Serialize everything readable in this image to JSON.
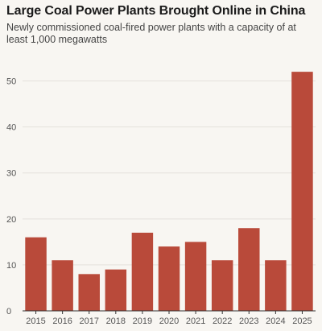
{
  "chart_data": {
    "type": "bar",
    "title": "Large Coal Power Plants Brought Online in China",
    "subtitle": "Newly commissioned coal-fired power plants with a capacity of at least 1,000 megawatts",
    "xlabel": "",
    "ylabel": "",
    "categories": [
      "2015",
      "2016",
      "2017",
      "2018",
      "2019",
      "2020",
      "2021",
      "2022",
      "2023",
      "2024",
      "2025"
    ],
    "values": [
      16,
      11,
      8,
      9,
      17,
      14,
      15,
      11,
      18,
      11,
      52
    ],
    "ylim": [
      0,
      55
    ],
    "yticks": [
      0,
      10,
      20,
      30,
      40,
      50
    ],
    "grid": "horizontal",
    "bar_color": "#b94a3a"
  }
}
